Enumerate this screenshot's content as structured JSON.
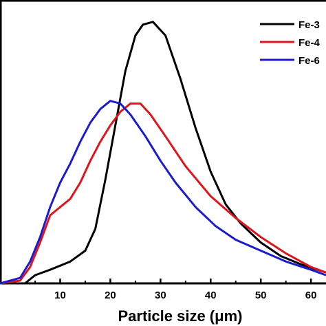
{
  "chart_data": {
    "type": "line",
    "title": "",
    "xlabel": "Particle size (μm)",
    "ylabel": "",
    "xlim": [
      -2,
      63
    ],
    "ylim": [
      0,
      100
    ],
    "x_ticks": [
      10,
      20,
      30,
      40,
      50,
      60
    ],
    "grid": false,
    "legend_position": "top-right",
    "series": [
      {
        "name": "Fe-3",
        "color": "#000000",
        "x": [
          -2,
          3,
          5,
          8,
          12,
          15,
          17,
          19,
          21,
          23,
          25,
          26.5,
          28.5,
          31,
          34,
          37,
          40,
          43,
          46,
          50,
          54,
          58,
          63
        ],
        "y": [
          0,
          0,
          3,
          5,
          8,
          12,
          20,
          38,
          58,
          78,
          91,
          95,
          96,
          91,
          75,
          57,
          41,
          29,
          22,
          15,
          10,
          7,
          4
        ]
      },
      {
        "name": "Fe-4",
        "color": "#e0141b",
        "x": [
          -2,
          2,
          4,
          6,
          8,
          10,
          12,
          14,
          16,
          18,
          20,
          22,
          24,
          26,
          28,
          31,
          35,
          40,
          45,
          50,
          55,
          60,
          63
        ],
        "y": [
          0,
          1,
          6,
          15,
          25,
          28,
          31,
          37,
          45,
          52,
          58,
          63,
          66,
          66,
          62,
          54,
          43,
          32,
          24,
          17,
          11,
          6,
          4
        ]
      },
      {
        "name": "Fe-6",
        "color": "#1c1ccc",
        "x": [
          -2,
          2,
          4,
          6,
          8,
          10,
          12,
          14,
          16,
          18,
          20,
          22,
          24,
          27,
          30,
          33,
          37,
          41,
          45,
          50,
          55,
          60,
          63
        ],
        "y": [
          0,
          2,
          8,
          17,
          28,
          37,
          44,
          52,
          59,
          64,
          67,
          66,
          62,
          54,
          45,
          37,
          28,
          21,
          16,
          12,
          8,
          5,
          3
        ]
      }
    ]
  }
}
